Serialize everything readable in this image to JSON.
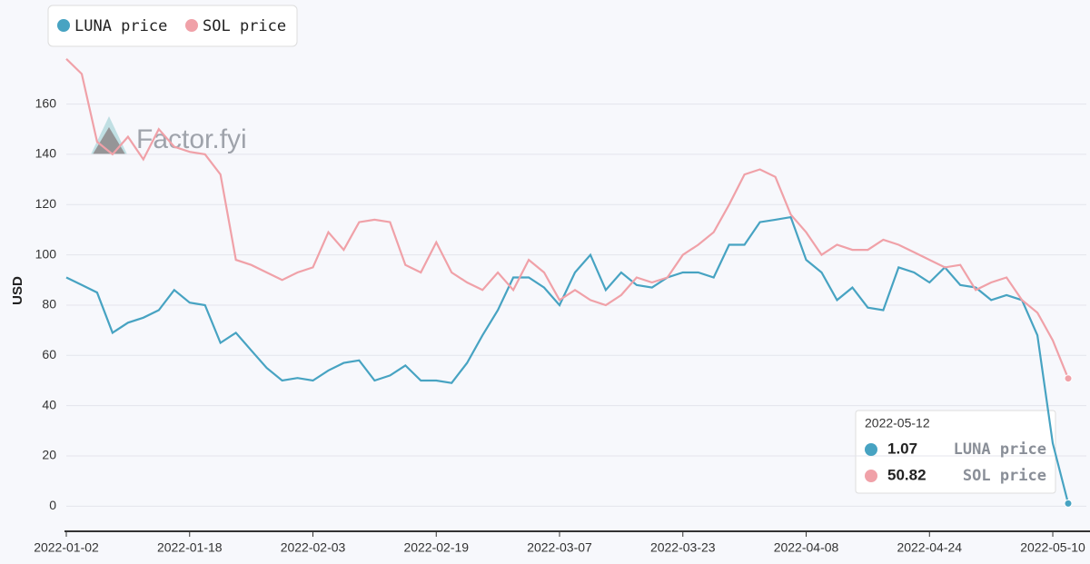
{
  "chart_data": {
    "type": "line",
    "y_label": "USD",
    "watermark": "Factor.fyi",
    "x": [
      "2022-01-02",
      "2022-01-04",
      "2022-01-06",
      "2022-01-08",
      "2022-01-10",
      "2022-01-12",
      "2022-01-14",
      "2022-01-16",
      "2022-01-18",
      "2022-01-20",
      "2022-01-22",
      "2022-01-24",
      "2022-01-26",
      "2022-01-28",
      "2022-01-30",
      "2022-02-01",
      "2022-02-03",
      "2022-02-05",
      "2022-02-07",
      "2022-02-09",
      "2022-02-11",
      "2022-02-13",
      "2022-02-15",
      "2022-02-17",
      "2022-02-19",
      "2022-02-21",
      "2022-02-23",
      "2022-02-25",
      "2022-02-27",
      "2022-03-01",
      "2022-03-03",
      "2022-03-05",
      "2022-03-07",
      "2022-03-09",
      "2022-03-11",
      "2022-03-13",
      "2022-03-15",
      "2022-03-17",
      "2022-03-19",
      "2022-03-21",
      "2022-03-23",
      "2022-03-25",
      "2022-03-27",
      "2022-03-29",
      "2022-03-31",
      "2022-04-02",
      "2022-04-04",
      "2022-04-06",
      "2022-04-08",
      "2022-04-10",
      "2022-04-12",
      "2022-04-14",
      "2022-04-16",
      "2022-04-18",
      "2022-04-20",
      "2022-04-22",
      "2022-04-24",
      "2022-04-26",
      "2022-04-28",
      "2022-04-30",
      "2022-05-02",
      "2022-05-04",
      "2022-05-06",
      "2022-05-08",
      "2022-05-10",
      "2022-05-12"
    ],
    "series": [
      {
        "name": "LUNA price",
        "color": "#47a3c2",
        "values": [
          91,
          88,
          85,
          69,
          73,
          75,
          78,
          86,
          81,
          80,
          65,
          69,
          62,
          55,
          50,
          51,
          50,
          54,
          57,
          58,
          50,
          52,
          56,
          50,
          50,
          49,
          57,
          68,
          78,
          91,
          91,
          87,
          80,
          93,
          100,
          86,
          93,
          88,
          87,
          91,
          93,
          93,
          91,
          104,
          104,
          113,
          114,
          115,
          98,
          93,
          82,
          87,
          79,
          78,
          95,
          93,
          89,
          95,
          88,
          87,
          82,
          84,
          82,
          68,
          25,
          1.07
        ]
      },
      {
        "name": "SOL price",
        "color": "#f0a1a8",
        "values": [
          178,
          172,
          145,
          140,
          147,
          138,
          150,
          143,
          141,
          140,
          132,
          98,
          96,
          93,
          90,
          93,
          95,
          109,
          102,
          113,
          114,
          113,
          96,
          93,
          105,
          93,
          89,
          86,
          93,
          86,
          98,
          93,
          82,
          86,
          82,
          80,
          84,
          91,
          89,
          91,
          100,
          104,
          109,
          120,
          132,
          134,
          131,
          116,
          109,
          100,
          104,
          102,
          102,
          106,
          104,
          101,
          98,
          95,
          96,
          86,
          89,
          91,
          82,
          77,
          66,
          50.82
        ]
      }
    ],
    "xlim": [
      "2022-01-02",
      "2022-05-12"
    ],
    "xticks": [
      "2022-01-02",
      "2022-01-18",
      "2022-02-03",
      "2022-02-19",
      "2022-03-07",
      "2022-03-23",
      "2022-04-08",
      "2022-04-24",
      "2022-05-10"
    ],
    "ylim": [
      -10,
      179
    ],
    "yticks": [
      0,
      20,
      40,
      60,
      80,
      100,
      120,
      140,
      160
    ],
    "grid": true,
    "legend": "top-left"
  }
}
